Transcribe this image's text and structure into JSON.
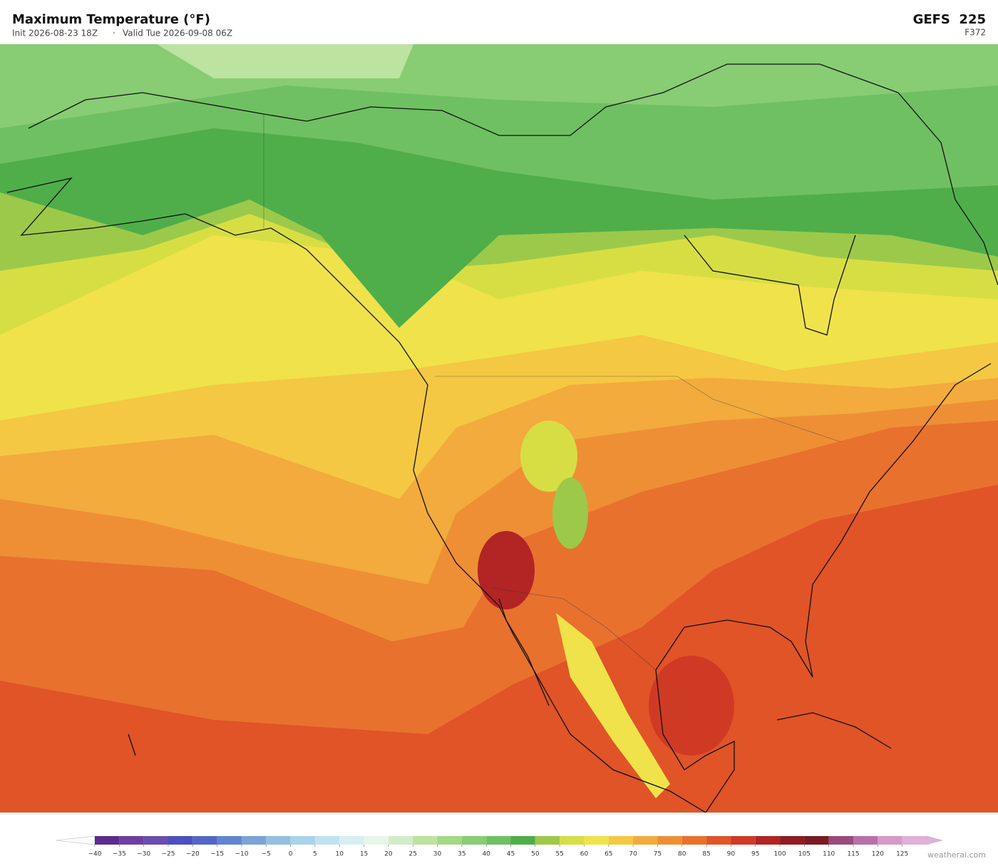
{
  "header": {
    "title": "Maximum Temperature  (°F)",
    "init": "Init 2026-08-23 18Z",
    "separator": "·",
    "valid": "Valid Tue 2026-09-08 06Z",
    "model": "GEFS  225",
    "forecast_hour": "F372"
  },
  "colorbar": {
    "bins": [
      -40,
      -35,
      -30,
      -25,
      -20,
      -15,
      -10,
      -5,
      0,
      5,
      10,
      15,
      20,
      25,
      30,
      35,
      40,
      45,
      50,
      55,
      60,
      65,
      70,
      75,
      80,
      85,
      90,
      95,
      100,
      105,
      110,
      115,
      120,
      125,
      130
    ],
    "colors": [
      "#5b2c8f",
      "#6e3fa0",
      "#6a4db0",
      "#4d4fc0",
      "#5566c8",
      "#5f86d0",
      "#7ba4d8",
      "#93bfe0",
      "#a9d3ea",
      "#c1e2f0",
      "#d8eef3",
      "#e8f5e9",
      "#d2ecc9",
      "#bde3a0",
      "#a2d886",
      "#88cc74",
      "#6fc062",
      "#4fae4a",
      "#9cc94a",
      "#d7de44",
      "#f0e24a",
      "#f4c843",
      "#f2ab3c",
      "#ee8f36",
      "#e8712e",
      "#e05428",
      "#cf3a25",
      "#b32424",
      "#8f1b1f",
      "#7a1a22",
      "#9a4a80",
      "#bb6fa8",
      "#d69ac8",
      "#e0b0d8"
    ],
    "ticks": [
      {
        "value": -40,
        "label": "−40"
      },
      {
        "value": -35,
        "label": "−35"
      },
      {
        "value": -30,
        "label": "−30"
      },
      {
        "value": -25,
        "label": "−25"
      },
      {
        "value": -20,
        "label": "−20"
      },
      {
        "value": -15,
        "label": "−15"
      },
      {
        "value": -10,
        "label": "−10"
      },
      {
        "value": -5,
        "label": "−5"
      },
      0,
      5,
      10,
      15,
      20,
      25,
      30,
      35,
      40,
      45,
      50,
      55,
      60,
      65,
      70,
      75,
      80,
      85,
      90,
      95,
      100,
      105,
      110,
      115,
      120,
      125
    ]
  },
  "footer": {
    "credit": "weatherai.com"
  }
}
